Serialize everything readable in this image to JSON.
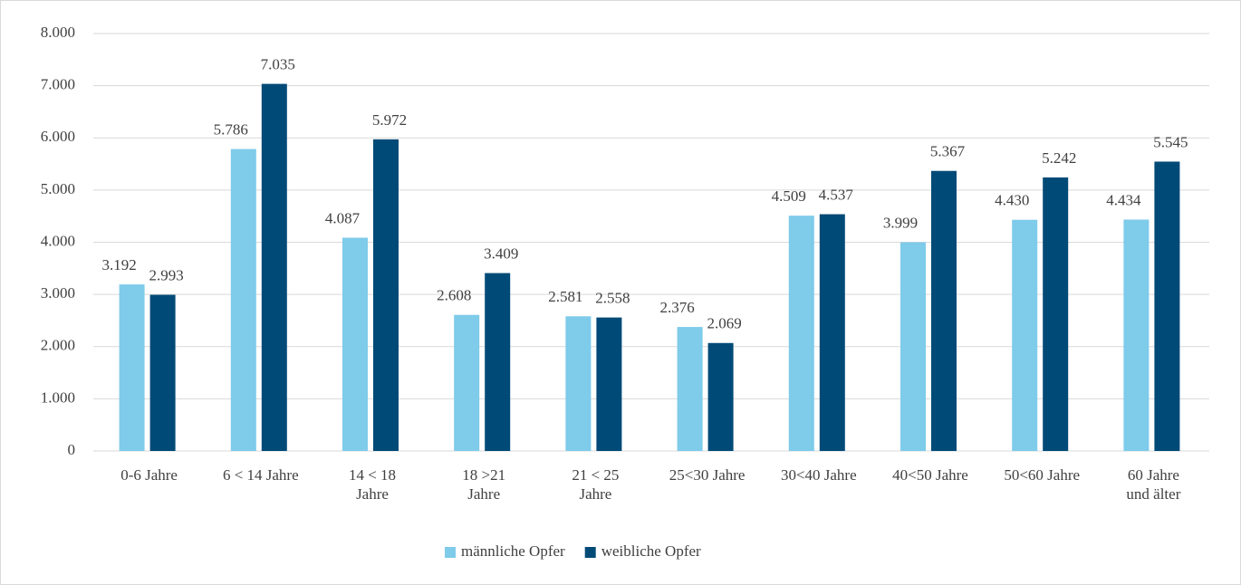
{
  "chart_data": {
    "type": "bar",
    "categories": [
      "0-6 Jahre",
      "6 < 14 Jahre",
      "14 < 18\nJahre",
      "18 >21\nJahre",
      "21 < 25\nJahre",
      "25<30 Jahre",
      "30<40 Jahre",
      "40<50 Jahre",
      "50<60 Jahre",
      "60 Jahre\nund älter"
    ],
    "series": [
      {
        "name": "männliche Opfer",
        "color": "#7ecbea",
        "values": [
          3192,
          5786,
          4087,
          2608,
          2581,
          2376,
          4509,
          3999,
          4430,
          4434
        ],
        "value_labels": [
          "3.192",
          "5.786",
          "4.087",
          "2.608",
          "2.581",
          "2.376",
          "4.509",
          "3.999",
          "4.430",
          "4.434"
        ]
      },
      {
        "name": "weibliche Opfer",
        "color": "#004a77",
        "values": [
          2993,
          7035,
          5972,
          3409,
          2558,
          2069,
          4537,
          5367,
          5242,
          5545
        ],
        "value_labels": [
          "2.993",
          "7.035",
          "5.972",
          "3.409",
          "2.558",
          "2.069",
          "4.537",
          "5.367",
          "5.242",
          "5.545"
        ]
      }
    ],
    "ylim": [
      0,
      8000
    ],
    "yticks": [
      0,
      {
        "value": 1000,
        "label": "1.000"
      },
      {
        "value": 2000,
        "label": "2.000"
      },
      {
        "value": 3000,
        "label": "3.000"
      },
      {
        "value": 4000,
        "label": "4.000"
      },
      {
        "value": 5000,
        "label": "5.000"
      },
      {
        "value": 6000,
        "label": "6.000"
      },
      {
        "value": 7000,
        "label": "7.000"
      },
      {
        "value": 8000,
        "label": "8.000"
      }
    ],
    "grid": true,
    "legend": "bottom"
  }
}
